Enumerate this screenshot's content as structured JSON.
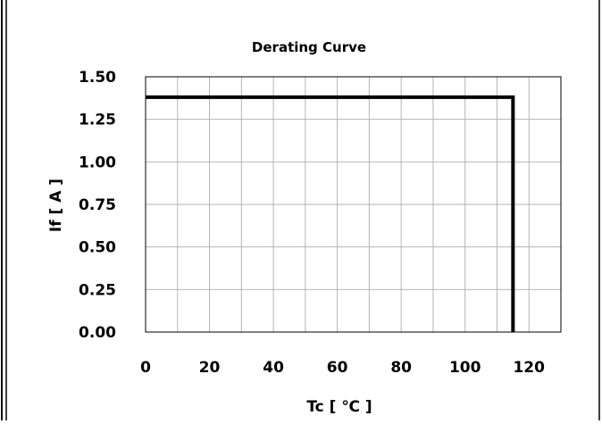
{
  "chart_data": {
    "type": "line",
    "title": "Derating Curve",
    "xlabel": "Tc [ ℃ ]",
    "ylabel": "If [ A ]",
    "xlim": [
      0,
      130
    ],
    "ylim": [
      0,
      1.5
    ],
    "x_ticks": [
      "0",
      "20",
      "40",
      "60",
      "80",
      "100",
      "120"
    ],
    "x_tick_values": [
      0,
      20,
      40,
      60,
      80,
      100,
      120
    ],
    "y_ticks": [
      "0.00",
      "0.25",
      "0.50",
      "0.75",
      "1.00",
      "1.25",
      "1.50"
    ],
    "y_tick_values": [
      0,
      0.25,
      0.5,
      0.75,
      1.0,
      1.25,
      1.5
    ],
    "x_minor_grid": [
      10,
      30,
      50,
      70,
      90,
      110
    ],
    "grid": true,
    "series": [
      {
        "x": [
          0,
          115,
          115
        ],
        "y": [
          1.38,
          1.38,
          0
        ],
        "color": "#000000"
      }
    ],
    "grid_color": "#b4b4b4",
    "frame_color": "#000000"
  }
}
